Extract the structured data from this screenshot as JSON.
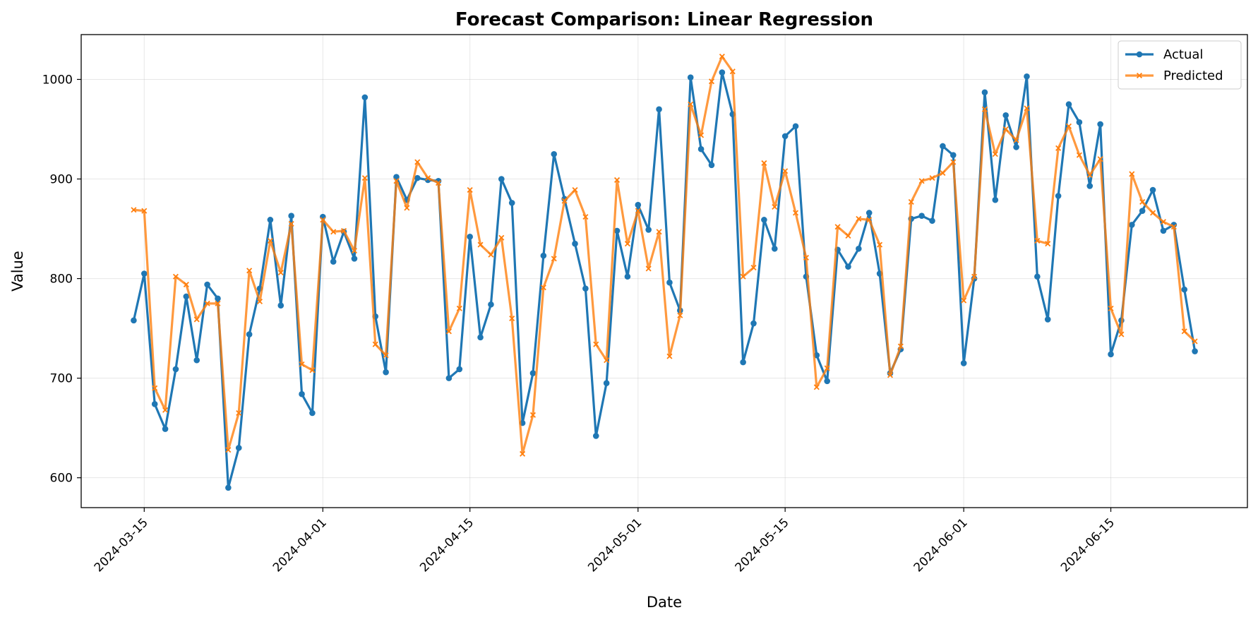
{
  "chart_data": {
    "type": "line",
    "title": "Forecast Comparison: Linear Regression",
    "xlabel": "Date",
    "ylabel": "Value",
    "x_start": "2024-03-14",
    "ylim": [
      570,
      1045
    ],
    "xlim": [
      "2024-03-09",
      "2024-06-28"
    ],
    "yticks": [
      600,
      700,
      800,
      900,
      1000
    ],
    "xticks": [
      "2024-03-15",
      "2024-04-01",
      "2024-04-15",
      "2024-05-01",
      "2024-05-15",
      "2024-06-01",
      "2024-06-15"
    ],
    "grid": true,
    "legend_position": "top-right",
    "series": [
      {
        "name": "Actual",
        "color": "#1f77b4",
        "marker": "circle",
        "values": [
          758,
          805,
          674,
          649,
          709,
          782,
          718,
          794,
          780,
          590,
          630,
          744,
          790,
          859,
          773,
          863,
          684,
          665,
          862,
          817,
          847,
          820,
          982,
          762,
          706,
          902,
          879,
          901,
          899,
          898,
          700,
          709,
          842,
          741,
          774,
          900,
          876,
          655,
          705,
          823,
          925,
          880,
          835,
          790,
          642,
          695,
          848,
          802,
          874,
          849,
          970,
          796,
          768,
          1002,
          930,
          914,
          1007,
          965,
          716,
          755,
          859,
          830,
          943,
          953,
          802,
          723,
          697,
          829,
          812,
          830,
          866,
          805,
          705,
          729,
          860,
          863,
          858,
          933,
          924,
          715,
          800,
          987,
          879,
          964,
          932,
          1003,
          802,
          759,
          883,
          975,
          957,
          893,
          955,
          724,
          758,
          854,
          868,
          889,
          848,
          854,
          789,
          727
        ]
      },
      {
        "name": "Predicted",
        "color": "#ff7f0e",
        "marker": "x",
        "values": [
          869,
          868,
          690,
          668,
          802,
          794,
          759,
          775,
          775,
          628,
          665,
          808,
          777,
          838,
          806,
          855,
          714,
          708,
          859,
          847,
          848,
          828,
          901,
          734,
          723,
          898,
          871,
          917,
          901,
          896,
          747,
          770,
          889,
          834,
          824,
          841,
          760,
          624,
          663,
          791,
          820,
          878,
          889,
          862,
          734,
          718,
          899,
          835,
          868,
          810,
          847,
          722,
          763,
          975,
          944,
          998,
          1023,
          1008,
          802,
          811,
          916,
          872,
          908,
          866,
          821,
          691,
          710,
          852,
          843,
          860,
          859,
          834,
          703,
          732,
          877,
          898,
          901,
          906,
          917,
          778,
          802,
          970,
          925,
          950,
          939,
          971,
          838,
          835,
          931,
          953,
          924,
          904,
          920,
          770,
          744,
          905,
          877,
          866,
          857,
          852,
          747,
          737
        ]
      }
    ]
  }
}
